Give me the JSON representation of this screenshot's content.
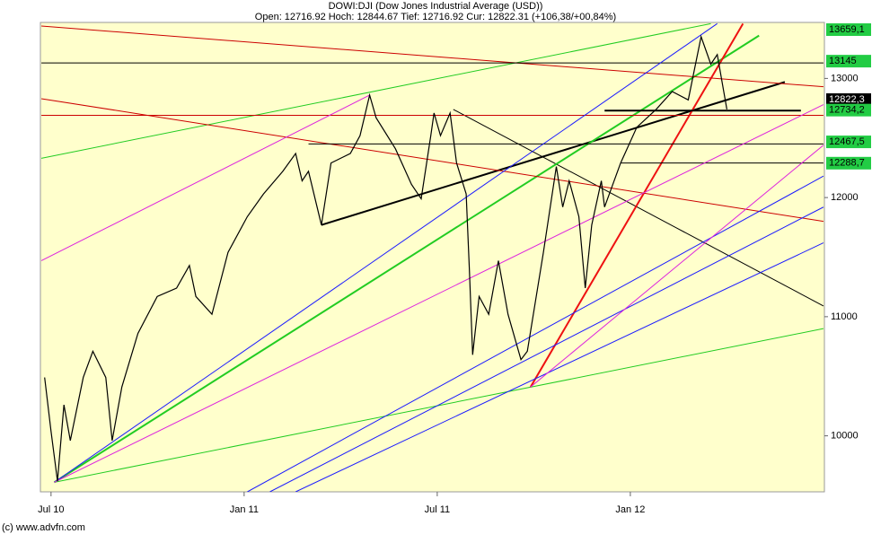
{
  "chart_data": {
    "type": "line",
    "title": "DOWI:DJI (Dow Jones Industrial Average (USD))",
    "subtitle": "Open: 12716.92 Hoch: 12844.67 Tief: 12716.92 Cur: 12822.31 (+106,38/+00,84%)",
    "footer": "(c) www.advfn.com",
    "xlim": [
      -0.33,
      24.03
    ],
    "ylim": [
      9530,
      13470
    ],
    "xticks": [
      {
        "value": 0,
        "label": "Jul 10"
      },
      {
        "value": 6,
        "label": "Jan 11"
      },
      {
        "value": 12,
        "label": "Jul 11"
      },
      {
        "value": 18,
        "label": "Jan 12"
      }
    ],
    "yticks": [
      10000,
      11000,
      12000,
      13000
    ],
    "background": "#ffffcc",
    "series": [
      {
        "name": "DOWI:DJI",
        "color": "#000000",
        "x": [
          -0.2,
          0,
          0.2,
          0.4,
          0.6,
          1.0,
          1.3,
          1.7,
          1.9,
          2.2,
          2.7,
          3.3,
          3.9,
          4.3,
          4.5,
          5.0,
          5.5,
          6.1,
          6.6,
          7.2,
          7.6,
          7.8,
          8.0,
          8.4,
          8.7,
          9.3,
          9.6,
          9.9,
          10.1,
          10.7,
          11.2,
          11.5,
          11.8,
          11.9,
          12.1,
          12.4,
          12.6,
          12.9,
          13.0,
          13.1,
          13.3,
          13.6,
          13.9,
          14.2,
          14.6,
          14.8,
          15.3,
          15.7,
          15.9,
          16.1,
          16.4,
          16.6,
          16.8,
          17.1,
          17.2,
          17.7,
          18.2,
          18.8,
          19.3,
          19.8,
          20.2,
          20.5,
          20.7,
          21.0
        ],
        "values": [
          10490,
          10040,
          9620,
          10260,
          9960,
          10490,
          10710,
          10490,
          9960,
          10410,
          10860,
          11170,
          11240,
          11430,
          11170,
          11020,
          11540,
          11840,
          12030,
          12220,
          12370,
          12140,
          12220,
          11770,
          12290,
          12370,
          12520,
          12860,
          12670,
          12410,
          12110,
          11990,
          12520,
          12710,
          12520,
          12710,
          12290,
          12030,
          11390,
          10680,
          11170,
          11020,
          11470,
          11020,
          10640,
          10710,
          11540,
          12260,
          11920,
          12140,
          11840,
          11240,
          11770,
          12140,
          11920,
          12290,
          12590,
          12740,
          12890,
          12820,
          13350,
          13120,
          13200,
          12740
        ]
      }
    ],
    "trendlines": [
      {
        "color": "#000000",
        "width": 2,
        "x": [
          8.4,
          22.8
        ],
        "y": [
          11770,
          12970
        ]
      },
      {
        "color": "#000000",
        "width": 1,
        "x": [
          12.5,
          24.0
        ],
        "y": [
          12740,
          11090
        ]
      },
      {
        "color": "#22cc22",
        "width": 2,
        "x": [
          0.1,
          22.0
        ],
        "y": [
          9610,
          13360
        ]
      },
      {
        "color": "#22cc22",
        "width": 1,
        "x": [
          0.1,
          24.0
        ],
        "y": [
          9610,
          10900
        ]
      },
      {
        "color": "#22cc22",
        "width": 1,
        "x": [
          -0.3,
          20.5
        ],
        "y": [
          12330,
          13460
        ]
      },
      {
        "color": "#ee1111",
        "width": 2,
        "x": [
          14.9,
          21.5
        ],
        "y": [
          10410,
          13460
        ]
      },
      {
        "color": "#cc0000",
        "width": 1,
        "x": [
          -0.3,
          24.0
        ],
        "y": [
          13440,
          12930
        ]
      },
      {
        "color": "#cc0000",
        "width": 1,
        "x": [
          -0.3,
          24.0
        ],
        "y": [
          12830,
          11800
        ]
      },
      {
        "color": "#cc0000",
        "width": 1,
        "x": [
          -0.3,
          24.0
        ],
        "y": [
          12690,
          12690
        ]
      },
      {
        "color": "#000000",
        "width": 1,
        "x": [
          -0.3,
          24.0
        ],
        "y": [
          13130,
          13130
        ]
      },
      {
        "color": "#000000",
        "width": 1,
        "x": [
          8.0,
          24.0
        ],
        "y": [
          12450,
          12450
        ]
      },
      {
        "color": "#000000",
        "width": 1,
        "x": [
          17.7,
          24.0
        ],
        "y": [
          12290,
          12290
        ]
      },
      {
        "color": "#000000",
        "width": 2,
        "x": [
          17.2,
          23.3
        ],
        "y": [
          12730,
          12730
        ]
      },
      {
        "color": "#1a1aff",
        "width": 1,
        "x": [
          0.1,
          20.7
        ],
        "y": [
          9610,
          13460
        ]
      },
      {
        "color": "#1a1aff",
        "width": 1,
        "x": [
          6.1,
          24.0
        ],
        "y": [
          9530,
          12180
        ]
      },
      {
        "color": "#1a1aff",
        "width": 1,
        "x": [
          6.8,
          24.0
        ],
        "y": [
          9530,
          11920
        ]
      },
      {
        "color": "#1a1aff",
        "width": 1,
        "x": [
          7.6,
          24.0
        ],
        "y": [
          9530,
          11620
        ]
      },
      {
        "color": "#dd22dd",
        "width": 1,
        "x": [
          -0.3,
          9.9
        ],
        "y": [
          11470,
          12860
        ]
      },
      {
        "color": "#dd22dd",
        "width": 1,
        "x": [
          0.1,
          24.0
        ],
        "y": [
          9610,
          12780
        ]
      },
      {
        "color": "#dd22dd",
        "width": 1,
        "x": [
          14.9,
          24.0
        ],
        "y": [
          10410,
          12440
        ]
      }
    ],
    "price_labels": [
      {
        "value": 13659.1,
        "label": "13659,1",
        "color": "#22cc44"
      },
      {
        "value": 13145,
        "label": "13145",
        "color": "#22cc44"
      },
      {
        "value": 12822.3,
        "label": "12822,3",
        "color": "#000000"
      },
      {
        "value": 12734.2,
        "label": "12734,2",
        "color": "#22cc44"
      },
      {
        "value": 12467.5,
        "label": "12467,5",
        "color": "#22cc44"
      },
      {
        "value": 12288.7,
        "label": "12288,7",
        "color": "#22cc44"
      }
    ]
  }
}
